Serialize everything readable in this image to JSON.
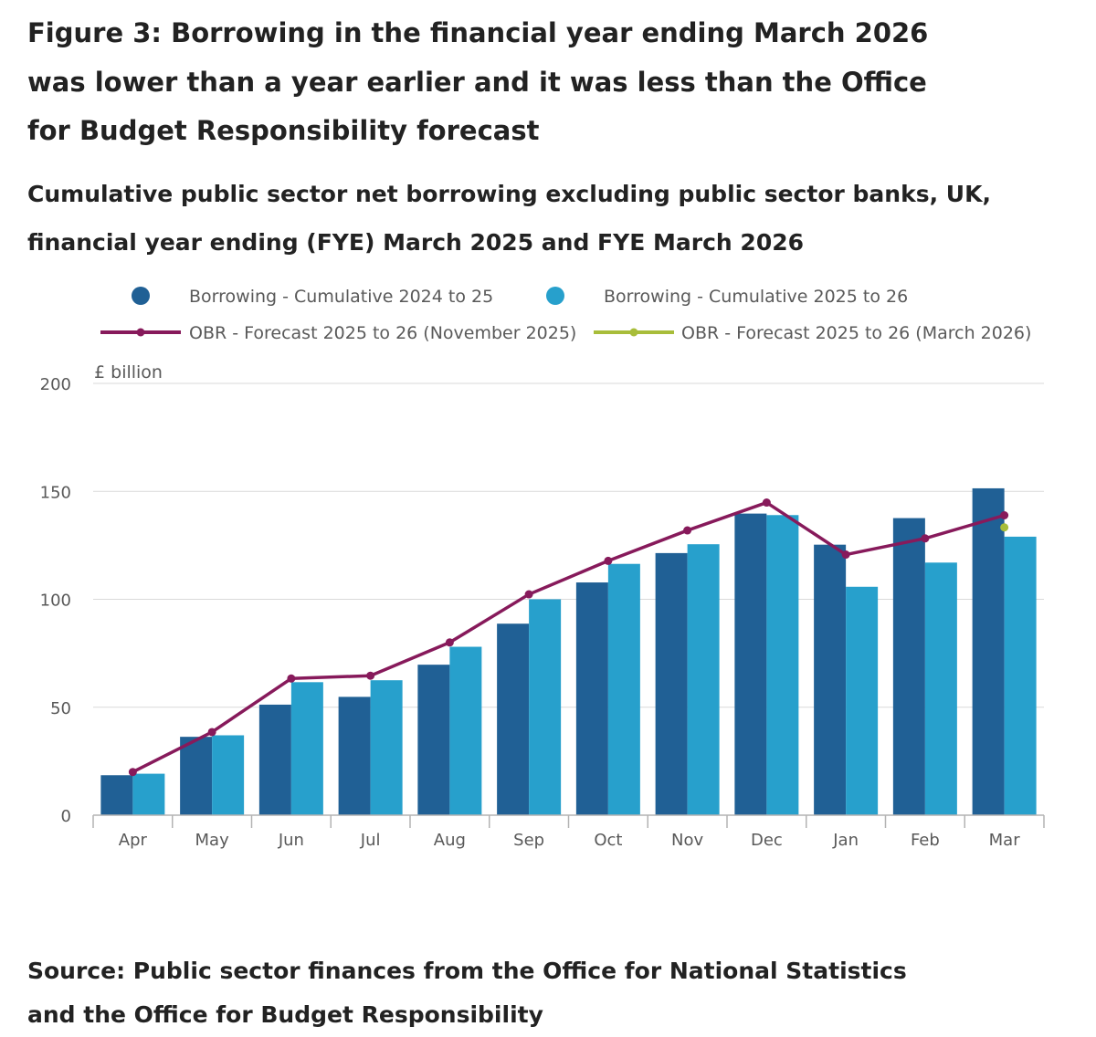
{
  "figure": {
    "title": "Figure 3: Borrowing in the financial year ending March 2026 was lower than a year earlier and it was less than the Office for Budget Responsibility forecast",
    "subtitle": "Cumulative public sector net borrowing excluding public sector banks, UK, financial year ending (FYE) March 2025 and FYE March 2026",
    "source": "Source: Public sector finances from the Office for National Statistics and the Office for Budget Responsibility"
  },
  "colors": {
    "series_2024_25": "#206095",
    "series_2025_26": "#27a0cc",
    "forecast_nov": "#871a5b",
    "forecast_mar": "#a8bd3a",
    "grid": "#d9d9d9",
    "axis": "#b3b3b3",
    "tick_text": "#595959"
  },
  "chart_data": {
    "type": "bar",
    "ylabel": "£ billion",
    "ylim": [
      0,
      200
    ],
    "yticks": [
      0,
      50,
      100,
      150,
      200
    ],
    "grid": true,
    "legend_position": "top",
    "categories": [
      "Apr",
      "May",
      "Jun",
      "Jul",
      "Aug",
      "Sep",
      "Oct",
      "Nov",
      "Dec",
      "Jan",
      "Feb",
      "Mar"
    ],
    "series": [
      {
        "name": "Borrowing - Cumulative 2024 to 25",
        "kind": "bar",
        "values": [
          18.5,
          36.3,
          51.2,
          54.8,
          69.7,
          88.7,
          107.8,
          121.4,
          139.7,
          125.3,
          137.6,
          151.4
        ]
      },
      {
        "name": "Borrowing - Cumulative 2025 to 26",
        "kind": "bar",
        "values": [
          19.2,
          37.0,
          61.6,
          62.5,
          78.0,
          100.0,
          116.4,
          125.5,
          139.0,
          105.8,
          117.0,
          129.0
        ]
      },
      {
        "name": "OBR - Forecast 2025 to 26 (November 2025)",
        "kind": "line",
        "values": [
          20.0,
          38.5,
          63.3,
          64.6,
          80.0,
          102.3,
          117.8,
          131.9,
          144.8,
          120.7,
          128.2,
          138.9
        ]
      },
      {
        "name": "OBR - Forecast 2025 to 26 (March 2026)",
        "kind": "line",
        "values": [
          null,
          null,
          null,
          null,
          null,
          null,
          null,
          null,
          null,
          null,
          null,
          133.3
        ]
      }
    ]
  }
}
